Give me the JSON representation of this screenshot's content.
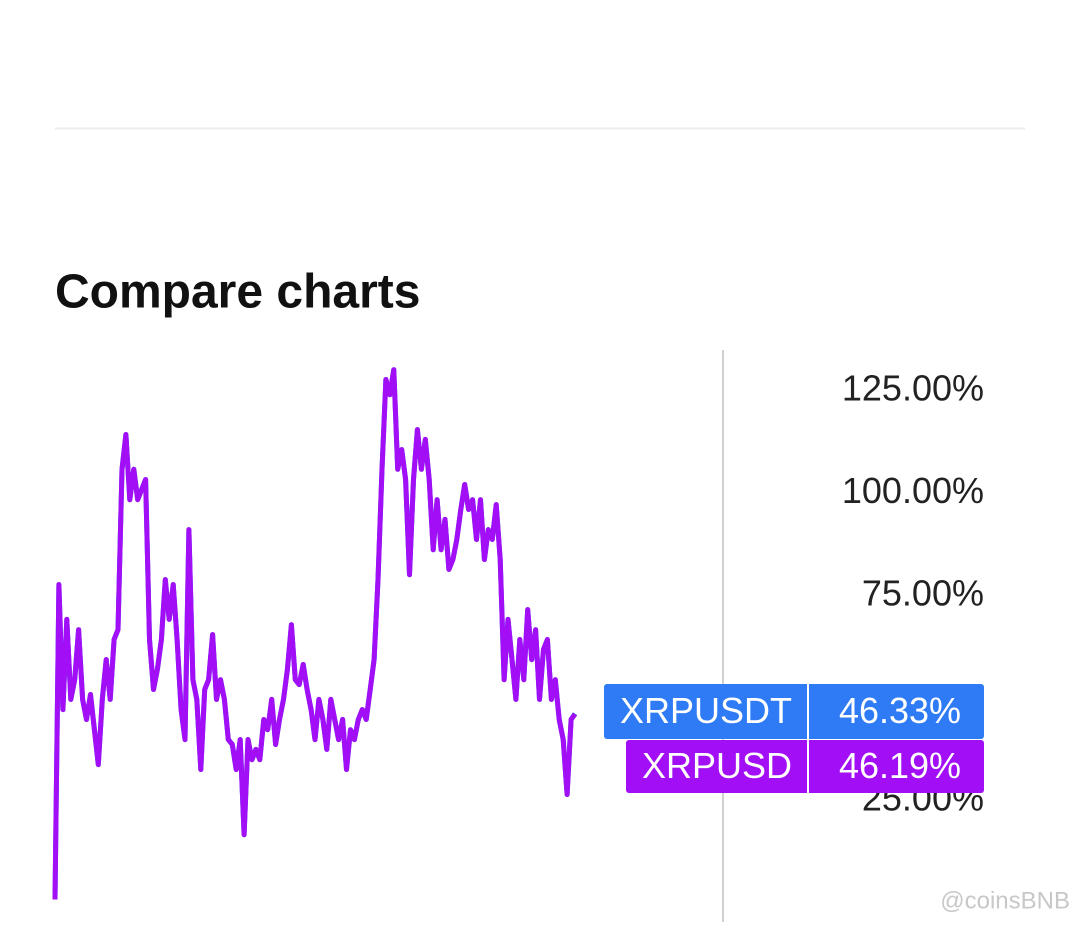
{
  "chart_data": {
    "type": "line",
    "title": "Compare charts",
    "ylim": [
      -4,
      135
    ],
    "yticks": [
      {
        "value": 25,
        "label": "25.00%"
      },
      {
        "value": 75,
        "label": "75.00%"
      },
      {
        "value": 100,
        "label": "100.00%"
      },
      {
        "value": 125,
        "label": "125.00%"
      }
    ],
    "watermark": "@coinsBNB",
    "series": [
      {
        "name": "XRPUSDT",
        "color": "#2f7bf5",
        "values": [
          1,
          77.8,
          47.3,
          69.3,
          49.8,
          54.6,
          66.8,
          49.8,
          44.9,
          51,
          42.4,
          33.9,
          49.8,
          59.5,
          49.8,
          64.4,
          66.8,
          105.9,
          114.4,
          98.5,
          105.9,
          98.5,
          101,
          103.4,
          64.4,
          52.2,
          57.1,
          64.4,
          79,
          69.3,
          77.8,
          64.4,
          47.3,
          40,
          91.2,
          54.6,
          49.8,
          32.7,
          52.2,
          54.6,
          65.6,
          49.8,
          54.6,
          49.8,
          40,
          38.8,
          32.7,
          40,
          16.8,
          40,
          35.1,
          37.6,
          35.1,
          44.9,
          42.4,
          49.8,
          38.8,
          44.9,
          49.8,
          57.1,
          68,
          54.6,
          53.4,
          58.3,
          52.2,
          47.3,
          40,
          49.8,
          44.9,
          37.6,
          49.8,
          44.9,
          40,
          44.9,
          32.7,
          42.4,
          40,
          44.9,
          47.3,
          44.9,
          52.2,
          59.5,
          79,
          105.9,
          127.8,
          124.1,
          130.2,
          105.9,
          110.7,
          103.4,
          80.2,
          103.4,
          115.6,
          105.9,
          113.2,
          103.4,
          86.3,
          98.5,
          86.3,
          93.7,
          81.5,
          83.9,
          88.8,
          96.1,
          102.2,
          96.1,
          98.5,
          88.8,
          98.5,
          83.9,
          91.2,
          88.8,
          97.3,
          83.9,
          54.6,
          69.3,
          59.5,
          49.8,
          64.4,
          54.6,
          71.7,
          59.5,
          66.8,
          49.8,
          62,
          64.4,
          49.8,
          54.6,
          44.9,
          40,
          26.6,
          44.9,
          46.33
        ],
        "value_labels": [
          null,
          null,
          null,
          null,
          null,
          null,
          null,
          null,
          null,
          null,
          null,
          null,
          null,
          null,
          null,
          null,
          null,
          null,
          null,
          null,
          null,
          null,
          null,
          null,
          null,
          null,
          null,
          null,
          null,
          null,
          null,
          null,
          null,
          null,
          null,
          null,
          null,
          null,
          null,
          null,
          null,
          null,
          null,
          null,
          null,
          null,
          null,
          null,
          null,
          null,
          null,
          null,
          null,
          null,
          null,
          null,
          null,
          null,
          null,
          null,
          null,
          null,
          null,
          null,
          null,
          null,
          null,
          null,
          null,
          null,
          null,
          null,
          null,
          null,
          null,
          null,
          null,
          null,
          null,
          null,
          null,
          null,
          null,
          null,
          null,
          null,
          null,
          null,
          null,
          null,
          null,
          null,
          null,
          null,
          null,
          null,
          null,
          null,
          null,
          null,
          null,
          null,
          null,
          null,
          null,
          null,
          null,
          null,
          null,
          null,
          null,
          null,
          null,
          null,
          null,
          null,
          null,
          null,
          null,
          null,
          null,
          null,
          null,
          null,
          null,
          null,
          null,
          null,
          null,
          null,
          null,
          null,
          "46.33%"
        ]
      },
      {
        "name": "XRPUSD",
        "color": "#a20ef5",
        "values": [
          1,
          77.8,
          47.3,
          69.3,
          49.8,
          54.6,
          66.8,
          49.8,
          44.9,
          51,
          42.4,
          33.9,
          49.8,
          59.5,
          49.8,
          64.4,
          66.8,
          105.9,
          114.4,
          98.5,
          105.9,
          98.5,
          101,
          103.4,
          64.4,
          52.2,
          57.1,
          64.4,
          79,
          69.3,
          77.8,
          64.4,
          47.3,
          40,
          91.2,
          54.6,
          49.8,
          32.7,
          52.2,
          54.6,
          65.6,
          49.8,
          54.6,
          49.8,
          40,
          38.8,
          32.7,
          40,
          16.8,
          40,
          35.1,
          37.6,
          35.1,
          44.9,
          42.4,
          49.8,
          38.8,
          44.9,
          49.8,
          57.1,
          68,
          54.6,
          53.4,
          58.3,
          52.2,
          47.3,
          40,
          49.8,
          44.9,
          37.6,
          49.8,
          44.9,
          40,
          44.9,
          32.7,
          42.4,
          40,
          44.9,
          47.3,
          44.9,
          52.2,
          59.5,
          79,
          105.9,
          127.8,
          124.1,
          130.2,
          105.9,
          110.7,
          103.4,
          80.2,
          103.4,
          115.6,
          105.9,
          113.2,
          103.4,
          86.3,
          98.5,
          86.3,
          93.7,
          81.5,
          83.9,
          88.8,
          96.1,
          102.2,
          96.1,
          98.5,
          88.8,
          98.5,
          83.9,
          91.2,
          88.8,
          97.3,
          83.9,
          54.6,
          69.3,
          59.5,
          49.8,
          64.4,
          54.6,
          71.7,
          59.5,
          66.8,
          49.8,
          62,
          64.4,
          49.8,
          54.6,
          44.9,
          40,
          26.6,
          44.9,
          46.19
        ],
        "value_labels": [
          null,
          null,
          null,
          null,
          null,
          null,
          null,
          null,
          null,
          null,
          null,
          null,
          null,
          null,
          null,
          null,
          null,
          null,
          null,
          null,
          null,
          null,
          null,
          null,
          null,
          null,
          null,
          null,
          null,
          null,
          null,
          null,
          null,
          null,
          null,
          null,
          null,
          null,
          null,
          null,
          null,
          null,
          null,
          null,
          null,
          null,
          null,
          null,
          null,
          null,
          null,
          null,
          null,
          null,
          null,
          null,
          null,
          null,
          null,
          null,
          null,
          null,
          null,
          null,
          null,
          null,
          null,
          null,
          null,
          null,
          null,
          null,
          null,
          null,
          null,
          null,
          null,
          null,
          null,
          null,
          null,
          null,
          null,
          null,
          null,
          null,
          null,
          null,
          null,
          null,
          null,
          null,
          null,
          null,
          null,
          null,
          null,
          null,
          null,
          null,
          null,
          null,
          null,
          null,
          null,
          null,
          null,
          null,
          null,
          null,
          null,
          null,
          null,
          null,
          null,
          null,
          null,
          null,
          null,
          null,
          null,
          null,
          null,
          null,
          null,
          null,
          null,
          null,
          null,
          null,
          null,
          null,
          "46.19%"
        ]
      }
    ]
  }
}
